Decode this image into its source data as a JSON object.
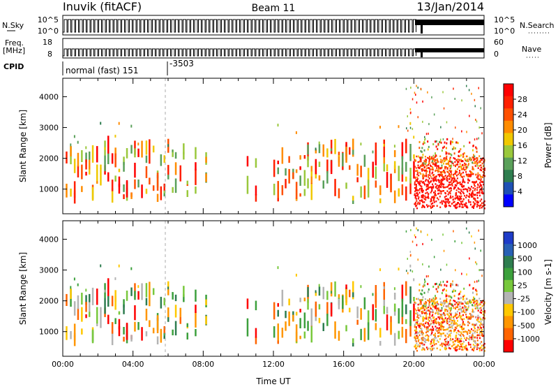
{
  "header": {
    "station": "Inuvik (fitACF)",
    "beam": "Beam 11",
    "date": "13/Jan/2014"
  },
  "noise_panel": {
    "left_label": "N.Sky",
    "left_ticks": [
      "10^5",
      "10^0"
    ],
    "right_ticks": [
      "10^5",
      "10^0"
    ],
    "right_label": "N.Search"
  },
  "freq_panel": {
    "left_label_1": "Freq.",
    "left_label_2": "[MHz]",
    "left_ticks": [
      "18",
      "8"
    ],
    "right_ticks": [
      "60",
      "0"
    ],
    "right_label": "Nave"
  },
  "cpid": {
    "label": "CPID",
    "mode": "normal (fast) 151",
    "mode2": "-3503"
  },
  "colors": {
    "power_scale": [
      "#0000ff",
      "#1e50b4",
      "#2e7d4f",
      "#5aa05a",
      "#9ac83c",
      "#f0c800",
      "#ff8c00",
      "#ff5000",
      "#ff2000",
      "#ff0000"
    ],
    "velocity_scale": [
      "#1e3cc8",
      "#2860b4",
      "#2e7d4f",
      "#3ca03c",
      "#78c83c",
      "#b4b4b4",
      "#ffc800",
      "#ff9600",
      "#ff6400",
      "#ff0000"
    ]
  },
  "chart_data": [
    {
      "type": "heatmap",
      "name": "power",
      "ylabel": "Slant Range [km]",
      "yticks": [
        "1000",
        "2000",
        "3000",
        "4000"
      ],
      "ylim": [
        200,
        4600
      ],
      "xlim": [
        0,
        24
      ],
      "colorbar_label": "Power [dB]",
      "colorbar_ticks": [
        "4",
        "8",
        "12",
        "16",
        "20",
        "24",
        "28"
      ],
      "colorbar_range": [
        0,
        32
      ]
    },
    {
      "type": "heatmap",
      "name": "velocity",
      "ylabel": "Slant Range [km]",
      "yticks": [
        "1000",
        "2000",
        "3000",
        "4000"
      ],
      "ylim": [
        200,
        4600
      ],
      "xlim": [
        0,
        24
      ],
      "xlabel": "Time UT",
      "xticks": [
        "00:00",
        "04:00",
        "08:00",
        "12:00",
        "16:00",
        "20:00",
        "00:00"
      ],
      "colorbar_label": "Velocity [m s-1]",
      "colorbar_ticks": [
        "1000",
        "500",
        "100",
        "25",
        "-25",
        "-100",
        "-500",
        "-1000"
      ]
    }
  ]
}
